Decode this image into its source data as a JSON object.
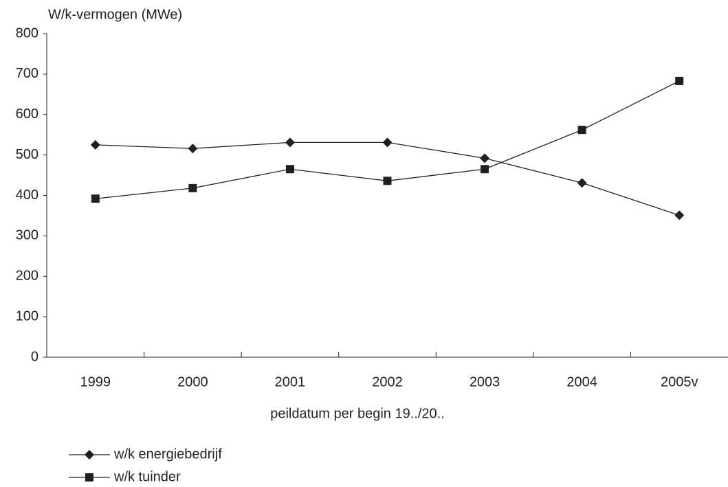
{
  "chart_data": {
    "type": "line",
    "y_label": "W/k-vermogen (MWe)",
    "x_label": "peildatum per begin 19../20..",
    "categories": [
      "1999",
      "2000",
      "2001",
      "2002",
      "2003",
      "2004",
      "2005v"
    ],
    "series": [
      {
        "name": "w/k energiebedrijf",
        "color": "#231f20",
        "marker": "diamond",
        "values": [
          525,
          516,
          531,
          531,
          492,
          431,
          351
        ]
      },
      {
        "name": "w/k tuinder",
        "color": "#231f20",
        "marker": "square",
        "values": [
          392,
          418,
          465,
          436,
          465,
          562,
          683
        ]
      }
    ],
    "ylim": [
      0,
      800
    ],
    "yticks": [
      0,
      100,
      200,
      300,
      400,
      500,
      600,
      700,
      800
    ],
    "grid": false,
    "legend": "bottom-left"
  }
}
